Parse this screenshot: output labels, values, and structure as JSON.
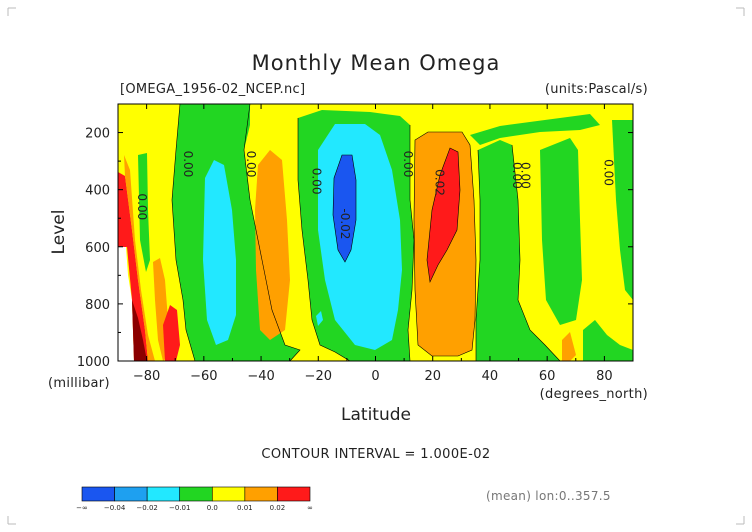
{
  "chart_data": {
    "type": "heatmap",
    "title": "Monthly Mean Omega",
    "file_label": "[OMEGA_1956-02_NCEP.nc]",
    "units_label": "(units:Pascal/s)",
    "xlabel": "Latitude",
    "x_unit_label": "(degrees_north)",
    "ylabel": "Level",
    "y_unit_label": "(millibar)",
    "xlim": [
      -90,
      90
    ],
    "ylim": [
      1000,
      100
    ],
    "x_ticks": [
      -80,
      -60,
      -40,
      -20,
      0,
      20,
      40,
      60,
      80
    ],
    "y_ticks": [
      200,
      400,
      600,
      800,
      1000
    ],
    "contour_interval_text": "CONTOUR INTERVAL = 1.000E-02",
    "contour_labels": [
      {
        "text": "0.00",
        "x": -83,
        "y": 460
      },
      {
        "text": "0.00",
        "x": -67,
        "y": 310
      },
      {
        "text": "0.00",
        "x": -45,
        "y": 310
      },
      {
        "text": "0.00",
        "x": -22,
        "y": 370
      },
      {
        "text": "-0.02",
        "x": -12,
        "y": 520
      },
      {
        "text": "0.00",
        "x": 10,
        "y": 310
      },
      {
        "text": "0.02",
        "x": 21,
        "y": 375
      },
      {
        "text": "0.00",
        "x": 48,
        "y": 350
      },
      {
        "text": "0.00",
        "x": 51,
        "y": 350
      },
      {
        "text": "0.00",
        "x": 80,
        "y": 340
      }
    ],
    "colorbar": {
      "labels": [
        "-∞",
        "-0.04",
        "-0.02",
        "-0.01",
        "0.0",
        "0.01",
        "0.02",
        "∞"
      ],
      "colors": [
        "#1a56f0",
        "#1ea0f0",
        "#22e8ff",
        "#22d622",
        "#ffff00",
        "#ffa000",
        "#ff1a1a"
      ]
    },
    "footer_text": "(mean) lon:0..357.5"
  },
  "colors": {
    "blue": "#1a56f0",
    "ltblue": "#1ea0f0",
    "cyan": "#22e8ff",
    "green": "#22d622",
    "yellow": "#ffff00",
    "orange": "#ffa000",
    "red": "#ff1a1a",
    "darkred": "#8b0000"
  }
}
